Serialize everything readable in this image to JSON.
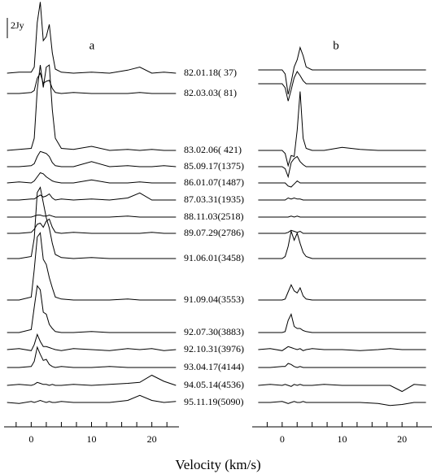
{
  "chart_data": [
    {
      "type": "line",
      "title": "a",
      "xlabel": "Velocity (km/s)",
      "scale_bar": {
        "value": 2,
        "label": "2Jy"
      },
      "xlim": [
        -4.5,
        24.5
      ],
      "xticks": [
        0,
        10,
        20
      ],
      "xminorticks": [
        -2.5,
        0,
        2.5,
        5,
        7.5,
        10,
        12.5,
        15,
        17.5,
        20,
        22.5
      ],
      "x": [
        -4,
        -2,
        0,
        0.5,
        1,
        1.5,
        2,
        2.5,
        3,
        3.5,
        4,
        5,
        7,
        10,
        13,
        16,
        18,
        20,
        22,
        24
      ],
      "series": [
        {
          "name": "82.01.18( 37)",
          "values": [
            0,
            0.1,
            0.1,
            0.6,
            5,
            7,
            3.2,
            3.6,
            4.8,
            2,
            0.4,
            0.1,
            0,
            0.1,
            0,
            0.3,
            0.6,
            0,
            0.1,
            0
          ]
        },
        {
          "name": "82.03.03( 81)",
          "values": [
            0,
            0,
            0.1,
            0.3,
            1.5,
            2,
            1,
            1.2,
            1.3,
            0.5,
            0.1,
            0,
            0.1,
            0,
            0,
            0,
            0.1,
            0,
            0,
            0
          ]
        },
        {
          "name": "83.02.06( 421)",
          "values": [
            0,
            0.1,
            0.2,
            1.2,
            6,
            8.4,
            6.2,
            8.2,
            8.4,
            4,
            1.2,
            0.2,
            0.1,
            0.4,
            0,
            0.1,
            0,
            0.1,
            0,
            0
          ]
        },
        {
          "name": "85.09.17(1375)",
          "values": [
            0,
            0,
            0.1,
            0.3,
            1,
            1.5,
            1.4,
            1.3,
            1,
            0.4,
            0.1,
            0,
            0,
            0.5,
            0,
            0.1,
            0,
            0,
            0.1,
            0
          ]
        },
        {
          "name": "86.01.07(1487)",
          "values": [
            0,
            0.1,
            0,
            0.2,
            0.6,
            1,
            0.9,
            0.6,
            0.4,
            0.2,
            0.1,
            0,
            0,
            0.3,
            0,
            0,
            0.1,
            0,
            0,
            0
          ]
        },
        {
          "name": "87.03.31(1935)",
          "values": [
            0,
            0,
            0.1,
            0.1,
            0.3,
            0.5,
            0.3,
            0.4,
            0.6,
            0.2,
            0,
            0.1,
            0,
            0.1,
            0,
            0.2,
            0.7,
            0,
            0,
            0
          ]
        },
        {
          "name": "88.11.03(2518)",
          "values": [
            0,
            0,
            0,
            0.1,
            0.2,
            0.2,
            0.1,
            0.1,
            0.2,
            0.1,
            0,
            0,
            0,
            0,
            0,
            0.1,
            0,
            0,
            0,
            0
          ]
        },
        {
          "name": "89.07.29(2786)",
          "values": [
            0,
            0,
            0.1,
            0.4,
            0.9,
            1,
            0.6,
            1.2,
            1.4,
            0.6,
            0.1,
            0,
            0.1,
            0,
            0,
            0,
            0,
            0.1,
            0,
            0
          ]
        },
        {
          "name": "91.06.01(3458)",
          "values": [
            0,
            0,
            0.2,
            2,
            6.5,
            7,
            5.5,
            4,
            3,
            1.5,
            0.4,
            0.1,
            0,
            0.1,
            0,
            0,
            0,
            0,
            0,
            0
          ]
        },
        {
          "name": "91.09.04(3553)",
          "values": [
            0,
            0,
            0.3,
            3,
            6.2,
            6.6,
            4,
            3.5,
            2.2,
            1.2,
            0.3,
            0.1,
            0,
            0,
            0,
            0.1,
            0,
            0,
            0,
            0
          ]
        },
        {
          "name": "92.07.30(3883)",
          "values": [
            0,
            0,
            0.3,
            2.5,
            4.6,
            4.2,
            2,
            1.8,
            0.8,
            0.4,
            0.1,
            0,
            0,
            0.1,
            0,
            0,
            0,
            0,
            0,
            0
          ]
        },
        {
          "name": "92.10.31(3976)",
          "values": [
            0,
            0.1,
            -0.1,
            0.5,
            1.5,
            0.8,
            0.3,
            0.3,
            0.2,
            0.1,
            0,
            -0.1,
            0.1,
            0,
            -0.1,
            0.1,
            0,
            0.1,
            -0.1,
            0
          ]
        },
        {
          "name": "93.04.17(4144)",
          "values": [
            0,
            0,
            0.1,
            0.6,
            2,
            1.3,
            0.7,
            0.8,
            0.3,
            0.1,
            0,
            0.1,
            0,
            0,
            0.1,
            0,
            0,
            0,
            0,
            0
          ]
        },
        {
          "name": "94.05.14(4536)",
          "values": [
            0,
            0.1,
            0,
            0.1,
            0.3,
            0.2,
            0.1,
            0.1,
            0,
            0.1,
            0,
            0,
            0.1,
            0,
            0.1,
            0.2,
            0.3,
            1,
            0.4,
            0
          ]
        },
        {
          "name": "95.11.19(5090)",
          "values": [
            0,
            -0.1,
            0.1,
            0,
            0.1,
            0.2,
            0.1,
            0,
            0.1,
            0,
            0,
            0.1,
            0,
            0,
            0,
            0.2,
            0.7,
            0.2,
            0,
            0.1
          ]
        }
      ]
    },
    {
      "type": "line",
      "title": "b",
      "xlim": [
        -5,
        25
      ],
      "xticks": [
        0,
        10,
        20
      ],
      "xminorticks": [
        -2.5,
        0,
        2.5,
        5,
        7.5,
        10,
        12.5,
        15,
        17.5,
        20,
        22.5
      ],
      "x": [
        -4,
        -2,
        0,
        0.5,
        1,
        1.5,
        2,
        2.5,
        3,
        3.5,
        4,
        5,
        7,
        10,
        13,
        16,
        18,
        20,
        22,
        24
      ],
      "series": [
        {
          "values": [
            0,
            0,
            0,
            -0.4,
            -2.4,
            -1.2,
            0.3,
            1,
            2.2,
            1.4,
            0.3,
            0,
            0,
            0,
            0,
            0,
            0,
            0,
            0,
            0
          ]
        },
        {
          "values": [
            0,
            0,
            0,
            -0.4,
            -1.7,
            -0.6,
            0.6,
            1.2,
            0.8,
            0.3,
            0,
            0,
            0,
            0,
            0,
            0,
            0,
            0,
            0,
            0
          ]
        },
        {
          "values": [
            0,
            0,
            0,
            -0.3,
            -1.5,
            -0.5,
            -0.6,
            2,
            5.8,
            1.2,
            0.2,
            0,
            0,
            0.3,
            0.1,
            0,
            0,
            0,
            0,
            0
          ]
        },
        {
          "values": [
            0,
            0,
            0,
            -0.2,
            -1,
            0.4,
            0.8,
            1,
            0.5,
            0.2,
            0,
            0,
            0,
            0,
            0,
            0,
            0,
            0,
            0,
            0
          ]
        },
        {
          "values": [
            0,
            0,
            0,
            0,
            -0.3,
            -0.4,
            -0.1,
            0.2,
            0,
            0,
            0,
            0,
            0,
            0,
            0,
            0,
            0,
            0,
            0,
            0
          ]
        },
        {
          "values": [
            0,
            0,
            0,
            0,
            0.2,
            0.1,
            0.2,
            0.1,
            0.1,
            0,
            0,
            0,
            0,
            0,
            0,
            0,
            0,
            0,
            0,
            0
          ]
        },
        {
          "values": [
            0,
            0,
            0,
            0,
            0,
            0.1,
            0,
            0.1,
            0,
            0,
            0,
            0,
            0,
            0,
            0,
            0,
            0,
            0,
            0,
            0
          ]
        },
        {
          "values": [
            0,
            0,
            0,
            0,
            0.1,
            0.3,
            0.2,
            0.1,
            0.2,
            0,
            0,
            0,
            0,
            0,
            0,
            0,
            0,
            0,
            0,
            0
          ]
        },
        {
          "values": [
            0,
            0,
            0,
            0.2,
            1.2,
            2.7,
            1.8,
            2.5,
            1.5,
            0.6,
            0.2,
            0,
            0,
            0,
            0,
            0,
            0,
            0,
            0,
            0
          ]
        },
        {
          "values": [
            0,
            0,
            0,
            0.1,
            0.8,
            1.5,
            0.9,
            0.7,
            1.2,
            0.4,
            0.1,
            0,
            0,
            0,
            0,
            0,
            0,
            0,
            0,
            0
          ]
        },
        {
          "values": [
            0,
            0,
            0,
            0.1,
            1.2,
            1.8,
            0.6,
            0.4,
            0.4,
            0.2,
            0.1,
            0,
            0,
            0,
            0,
            0,
            0,
            0,
            0,
            0
          ]
        },
        {
          "values": [
            0,
            0.1,
            -0.1,
            0.1,
            0.3,
            0.2,
            0.1,
            0,
            0.1,
            -0.1,
            0,
            0.1,
            0,
            0,
            -0.1,
            0,
            0.1,
            0,
            0,
            0
          ]
        },
        {
          "values": [
            0,
            0,
            0.1,
            0.1,
            0.4,
            0.3,
            0.1,
            0,
            0.1,
            0,
            0,
            0,
            0,
            0,
            0,
            0,
            0,
            0,
            0,
            0
          ]
        },
        {
          "values": [
            0,
            0.1,
            0,
            0.1,
            0,
            -0.1,
            0.1,
            0,
            0.1,
            0,
            0,
            0,
            0.1,
            0,
            0,
            0,
            0,
            -0.6,
            0.1,
            0
          ]
        },
        {
          "values": [
            0,
            0,
            0.1,
            0,
            -0.1,
            0,
            0.1,
            0,
            0,
            0.1,
            0,
            0,
            0,
            0,
            0,
            -0.1,
            -0.3,
            -0.2,
            0,
            0
          ]
        }
      ]
    }
  ]
}
